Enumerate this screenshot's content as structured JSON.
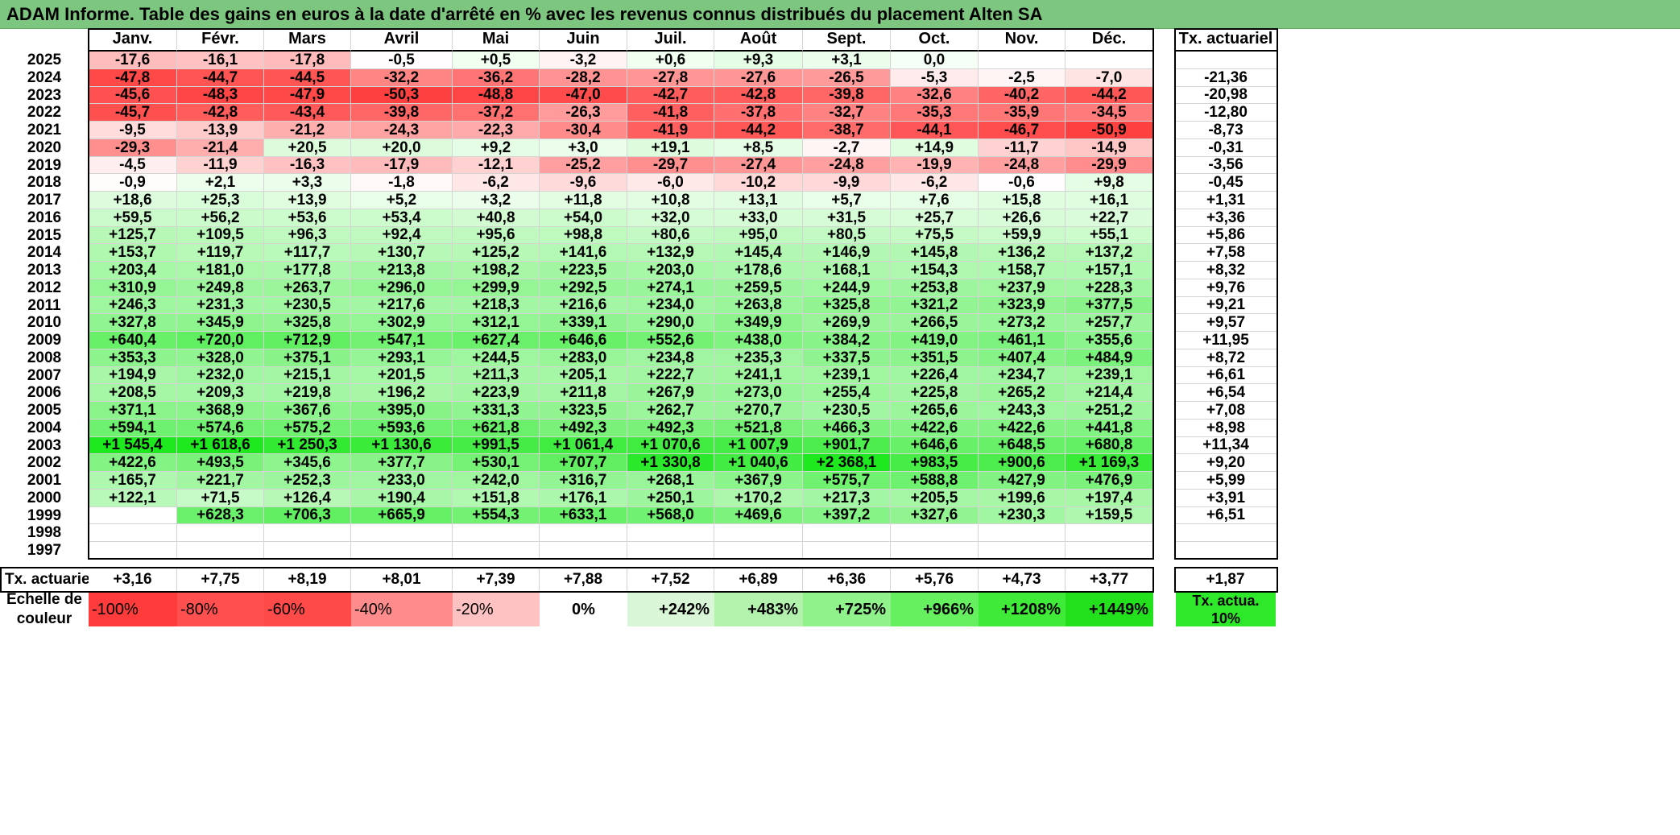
{
  "title": "ADAM Informe. Table des gains en euros à la date d'arrêté en % avec les revenus connus distribués du placement Alten SA",
  "months": [
    "Janv.",
    "Févr.",
    "Mars",
    "Avril",
    "Mai",
    "Juin",
    "Juil.",
    "Août",
    "Sept.",
    "Oct.",
    "Nov.",
    "Déc."
  ],
  "ta_header": "Tx. actuariel",
  "rows": [
    {
      "year": "2025",
      "vals": [
        "-17,6",
        "-16,1",
        "-17,8",
        "-0,5",
        "+0,5",
        "-3,2",
        "+0,6",
        "+9,3",
        "+3,1",
        "0,0",
        "",
        ""
      ],
      "ta": ""
    },
    {
      "year": "2024",
      "vals": [
        "-47,8",
        "-44,7",
        "-44,5",
        "-32,2",
        "-36,2",
        "-28,2",
        "-27,8",
        "-27,6",
        "-26,5",
        "-5,3",
        "-2,5",
        "-7,0"
      ],
      "ta": "-21,36"
    },
    {
      "year": "2023",
      "vals": [
        "-45,6",
        "-48,3",
        "-47,9",
        "-50,3",
        "-48,8",
        "-47,0",
        "-42,7",
        "-42,8",
        "-39,8",
        "-32,6",
        "-40,2",
        "-44,2"
      ],
      "ta": "-20,98"
    },
    {
      "year": "2022",
      "vals": [
        "-45,7",
        "-42,8",
        "-43,4",
        "-39,8",
        "-37,2",
        "-26,3",
        "-41,8",
        "-37,8",
        "-32,7",
        "-35,3",
        "-35,9",
        "-34,5"
      ],
      "ta": "-12,80"
    },
    {
      "year": "2021",
      "vals": [
        "-9,5",
        "-13,9",
        "-21,2",
        "-24,3",
        "-22,3",
        "-30,4",
        "-41,9",
        "-44,2",
        "-38,7",
        "-44,1",
        "-46,7",
        "-50,9"
      ],
      "ta": "-8,73"
    },
    {
      "year": "2020",
      "vals": [
        "-29,3",
        "-21,4",
        "+20,5",
        "+20,0",
        "+9,2",
        "+3,0",
        "+19,1",
        "+8,5",
        "-2,7",
        "+14,9",
        "-11,7",
        "-14,9"
      ],
      "ta": "-0,31"
    },
    {
      "year": "2019",
      "vals": [
        "-4,5",
        "-11,9",
        "-16,3",
        "-17,9",
        "-12,1",
        "-25,2",
        "-29,7",
        "-27,4",
        "-24,8",
        "-19,9",
        "-24,8",
        "-29,9"
      ],
      "ta": "-3,56"
    },
    {
      "year": "2018",
      "vals": [
        "-0,9",
        "+2,1",
        "+3,3",
        "-1,8",
        "-6,2",
        "-9,6",
        "-6,0",
        "-10,2",
        "-9,9",
        "-6,2",
        "-0,6",
        "+9,8"
      ],
      "ta": "-0,45"
    },
    {
      "year": "2017",
      "vals": [
        "+18,6",
        "+25,3",
        "+13,9",
        "+5,2",
        "+3,2",
        "+11,8",
        "+10,8",
        "+13,1",
        "+5,7",
        "+7,6",
        "+15,8",
        "+16,1"
      ],
      "ta": "+1,31"
    },
    {
      "year": "2016",
      "vals": [
        "+59,5",
        "+56,2",
        "+53,6",
        "+53,4",
        "+40,8",
        "+54,0",
        "+32,0",
        "+33,0",
        "+31,5",
        "+25,7",
        "+26,6",
        "+22,7"
      ],
      "ta": "+3,36"
    },
    {
      "year": "2015",
      "vals": [
        "+125,7",
        "+109,5",
        "+96,3",
        "+92,4",
        "+95,6",
        "+98,8",
        "+80,6",
        "+95,0",
        "+80,5",
        "+75,5",
        "+59,9",
        "+55,1"
      ],
      "ta": "+5,86"
    },
    {
      "year": "2014",
      "vals": [
        "+153,7",
        "+119,7",
        "+117,7",
        "+130,7",
        "+125,2",
        "+141,6",
        "+132,9",
        "+145,4",
        "+146,9",
        "+145,8",
        "+136,2",
        "+137,2"
      ],
      "ta": "+7,58"
    },
    {
      "year": "2013",
      "vals": [
        "+203,4",
        "+181,0",
        "+177,8",
        "+213,8",
        "+198,2",
        "+223,5",
        "+203,0",
        "+178,6",
        "+168,1",
        "+154,3",
        "+158,7",
        "+157,1"
      ],
      "ta": "+8,32"
    },
    {
      "year": "2012",
      "vals": [
        "+310,9",
        "+249,8",
        "+263,7",
        "+296,0",
        "+299,9",
        "+292,5",
        "+274,1",
        "+259,5",
        "+244,9",
        "+253,8",
        "+237,9",
        "+228,3"
      ],
      "ta": "+9,76"
    },
    {
      "year": "2011",
      "vals": [
        "+246,3",
        "+231,3",
        "+230,5",
        "+217,6",
        "+218,3",
        "+216,6",
        "+234,0",
        "+263,8",
        "+325,8",
        "+321,2",
        "+323,9",
        "+377,5"
      ],
      "ta": "+9,21"
    },
    {
      "year": "2010",
      "vals": [
        "+327,8",
        "+345,9",
        "+325,8",
        "+302,9",
        "+312,1",
        "+339,1",
        "+290,0",
        "+349,9",
        "+269,9",
        "+266,5",
        "+273,2",
        "+257,7"
      ],
      "ta": "+9,57"
    },
    {
      "year": "2009",
      "vals": [
        "+640,4",
        "+720,0",
        "+712,9",
        "+547,1",
        "+627,4",
        "+646,6",
        "+552,6",
        "+438,0",
        "+384,2",
        "+419,0",
        "+461,1",
        "+355,6"
      ],
      "ta": "+11,95"
    },
    {
      "year": "2008",
      "vals": [
        "+353,3",
        "+328,0",
        "+375,1",
        "+293,1",
        "+244,5",
        "+283,0",
        "+234,8",
        "+235,3",
        "+337,5",
        "+351,5",
        "+407,4",
        "+484,9"
      ],
      "ta": "+8,72"
    },
    {
      "year": "2007",
      "vals": [
        "+194,9",
        "+232,0",
        "+215,1",
        "+201,5",
        "+211,3",
        "+205,1",
        "+222,7",
        "+241,1",
        "+239,1",
        "+226,4",
        "+234,7",
        "+239,1"
      ],
      "ta": "+6,61"
    },
    {
      "year": "2006",
      "vals": [
        "+208,5",
        "+209,3",
        "+219,8",
        "+196,2",
        "+223,9",
        "+211,8",
        "+267,9",
        "+273,0",
        "+255,4",
        "+225,8",
        "+265,2",
        "+214,4"
      ],
      "ta": "+6,54"
    },
    {
      "year": "2005",
      "vals": [
        "+371,1",
        "+368,9",
        "+367,6",
        "+395,0",
        "+331,3",
        "+323,5",
        "+262,7",
        "+270,7",
        "+230,5",
        "+265,6",
        "+243,3",
        "+251,2"
      ],
      "ta": "+7,08"
    },
    {
      "year": "2004",
      "vals": [
        "+594,1",
        "+574,6",
        "+575,2",
        "+593,6",
        "+621,8",
        "+492,3",
        "+492,3",
        "+521,8",
        "+466,3",
        "+422,6",
        "+422,6",
        "+441,8"
      ],
      "ta": "+8,98"
    },
    {
      "year": "2003",
      "vals": [
        "+1 545,4",
        "+1 618,6",
        "+1 250,3",
        "+1 130,6",
        "+991,5",
        "+1 061,4",
        "+1 070,6",
        "+1 007,9",
        "+901,7",
        "+646,6",
        "+648,5",
        "+680,8"
      ],
      "ta": "+11,34"
    },
    {
      "year": "2002",
      "vals": [
        "+422,6",
        "+493,5",
        "+345,6",
        "+377,7",
        "+530,1",
        "+707,7",
        "+1 330,8",
        "+1 040,6",
        "+2 368,1",
        "+983,5",
        "+900,6",
        "+1 169,3"
      ],
      "ta": "+9,20"
    },
    {
      "year": "2001",
      "vals": [
        "+165,7",
        "+221,7",
        "+252,3",
        "+233,0",
        "+242,0",
        "+316,7",
        "+268,1",
        "+367,9",
        "+575,7",
        "+588,8",
        "+427,9",
        "+476,9"
      ],
      "ta": "+5,99"
    },
    {
      "year": "2000",
      "vals": [
        "+122,1",
        "+71,5",
        "+126,4",
        "+190,4",
        "+151,8",
        "+176,1",
        "+250,1",
        "+170,2",
        "+217,3",
        "+205,5",
        "+199,6",
        "+197,4"
      ],
      "ta": "+3,91"
    },
    {
      "year": "1999",
      "vals": [
        "",
        "+628,3",
        "+706,3",
        "+665,9",
        "+554,3",
        "+633,1",
        "+568,0",
        "+469,6",
        "+397,2",
        "+327,6",
        "+230,3",
        "+159,5"
      ],
      "ta": "+6,51"
    },
    {
      "year": "1998",
      "vals": [
        "",
        "",
        "",
        "",
        "",
        "",
        "",
        "",
        "",
        "",
        "",
        ""
      ],
      "ta": ""
    },
    {
      "year": "1997",
      "vals": [
        "",
        "",
        "",
        "",
        "",
        "",
        "",
        "",
        "",
        "",
        "",
        ""
      ],
      "ta": ""
    }
  ],
  "totals": {
    "label": "Tx. actuariel",
    "vals": [
      "+3,16",
      "+7,75",
      "+8,19",
      "+8,01",
      "+7,39",
      "+7,88",
      "+7,52",
      "+6,89",
      "+6,36",
      "+5,76",
      "+4,73",
      "+3,77"
    ],
    "ta": "+1,87"
  },
  "scale": {
    "label": "Echelle de couleur",
    "items": [
      "-100%",
      "-80%",
      "-60%",
      "-40%",
      "-20%",
      "0%",
      "+242%",
      "+483%",
      "+725%",
      "+966%",
      "+1208%",
      "+1449%"
    ],
    "colors": [
      "#ff3b3b",
      "#ff4f4f",
      "#ff4a4a",
      "#ff8c8c",
      "#ffc2c2",
      "#ffffff",
      "#d9f7d6",
      "#b3f2ad",
      "#8ff28a",
      "#66f060",
      "#3fea38",
      "#22e01c"
    ],
    "ta_label": "Tx. actua. 10%",
    "ta_color": "#2ee82a"
  },
  "colors": {
    "title_bg": "#7dc67f",
    "negative_max": "#ff3232",
    "positive_max": "#00e600"
  }
}
